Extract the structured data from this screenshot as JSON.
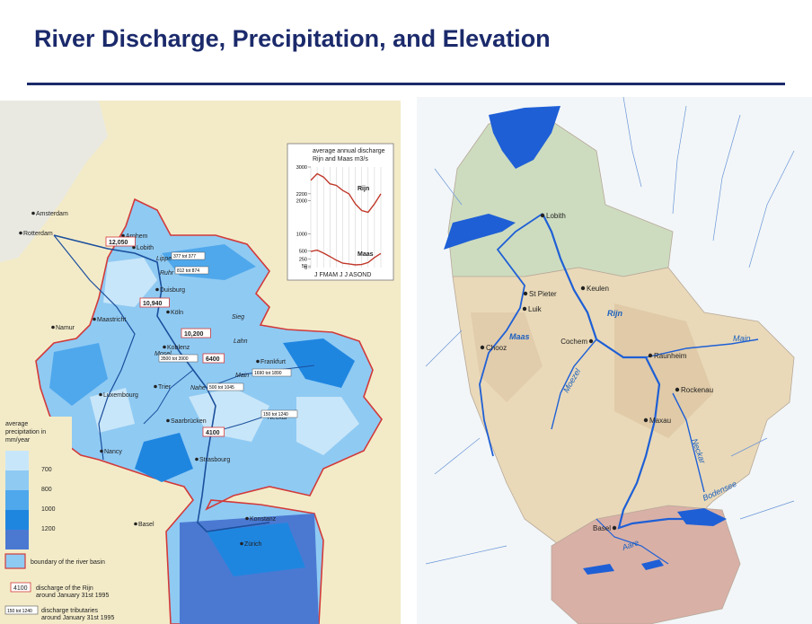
{
  "title": "River Discharge, Precipitation, and Elevation",
  "left_map": {
    "cities": [
      "Amsterdam",
      "Rotterdam",
      "Arnhem",
      "Lobith",
      "Duisburg",
      "Maastricht",
      "Köln",
      "Namur",
      "Koblenz",
      "Frankfurt",
      "Trier",
      "Luxembourg",
      "Saarbrücken",
      "Nancy",
      "Strasbourg",
      "Basel",
      "Konstanz",
      "Zürich"
    ],
    "rivers": [
      "Lippe",
      "Ruhr",
      "Sieg",
      "Lahn",
      "Mosel",
      "Main",
      "Nahe",
      "Neckar"
    ],
    "discharge_labels": [
      "12,050",
      "10,940",
      "10,200",
      "6400",
      "4100"
    ],
    "tributary_labels": [
      "377 tot 377",
      "812 tot 874",
      "3500 tot 3900",
      "1690 tot 1890",
      "500 tot 1045",
      "150 tot 1240"
    ],
    "inset": {
      "title_line1": "average annual discharge",
      "title_line2": "Rijn and Maas m3/s",
      "yticks": [
        "3000",
        "2200",
        "2000",
        "1000",
        "500",
        "250",
        "50",
        "0"
      ],
      "months": "J FMAM J J ASOND",
      "series": [
        {
          "name": "Rijn",
          "values": [
            2600,
            2800,
            2700,
            2500,
            2450,
            2300,
            2200,
            1900,
            1700,
            1650,
            1900,
            2200
          ],
          "color": "#c0392b"
        },
        {
          "name": "Maas",
          "values": [
            480,
            520,
            430,
            330,
            220,
            130,
            110,
            80,
            90,
            150,
            300,
            420
          ],
          "color": "#c0392b"
        }
      ]
    },
    "legend": {
      "title": "average precipitation in mm/year",
      "levels": [
        "700",
        "800",
        "1000",
        "1200"
      ],
      "colors": [
        "#c8e6f9",
        "#8fcaf3",
        "#4fa8ec",
        "#1f86e0",
        "#4b79d2"
      ],
      "boundary_label": "boundary of the river basin",
      "discharge_sample": "4100",
      "discharge_text": "discharge of the Rijn around January 31st 1995",
      "tributary_sample": "150 tot 1240",
      "tributary_text": "discharge tributaries around January 31st 1995"
    }
  },
  "right_map": {
    "cities": [
      "Lobith",
      "St Pieter",
      "Keulen",
      "Luik",
      "Cochem",
      "Chooz",
      "Raunheim",
      "Rockenau",
      "Maxau",
      "Basel"
    ],
    "rivers": [
      "Rijn",
      "Maas",
      "Main",
      "Moezel",
      "Neckar",
      "Bodensee",
      "Aare"
    ],
    "colors": {
      "water": "#1e5fd6",
      "basin": "#e9d9b8",
      "lowland": "#cddcbf",
      "mountain": "#d9b0a6",
      "sea": "#eef4f6"
    }
  }
}
